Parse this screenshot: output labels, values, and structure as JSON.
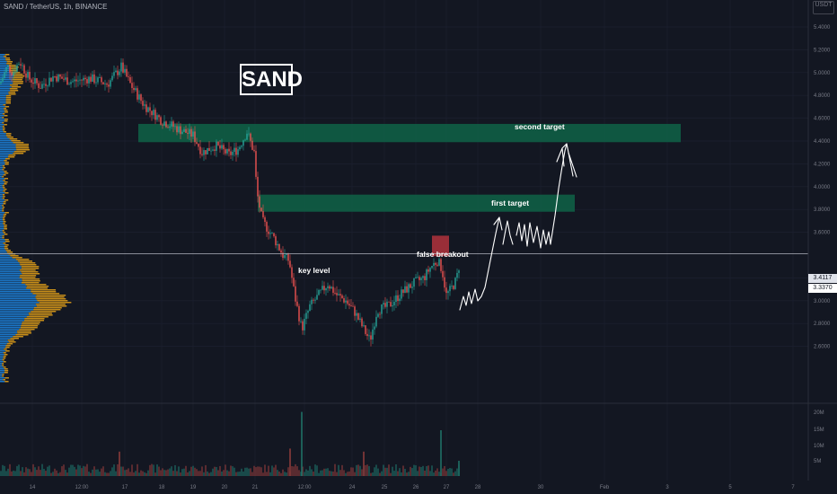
{
  "header": {
    "symbol_line": "SAND / TetherUS, 1h, BINANCE",
    "quote_currency": "USDT"
  },
  "title_box": "SAND",
  "annotations": {
    "key_level": "key level",
    "false_breakout": "false breakout",
    "first_target": "first target",
    "second_target": "second target"
  },
  "price_tags": {
    "key_level_price": "3.4117",
    "last_price": "3.3370"
  },
  "colors": {
    "background": "#131722",
    "up_candle": "#26a69a",
    "down_candle": "#ef5350",
    "zone_fill": "#0f5e45",
    "false_breakout_zone": "#b2333c",
    "volume_profile_blue": "#1e88e5",
    "volume_profile_yellow": "#e8a317",
    "projection_line": "#ffffff"
  },
  "chart_data": {
    "type": "candlestick",
    "title": "SAND / TetherUS, 1h, BINANCE",
    "y_axis": {
      "ticks": [
        "5.4000",
        "5.2000",
        "5.0000",
        "4.8000",
        "4.6000",
        "4.4000",
        "4.2000",
        "4.0000",
        "3.8000",
        "3.6000",
        "3.2000",
        "3.0000",
        "2.8000",
        "2.6000"
      ],
      "range": [
        2.45,
        5.55
      ],
      "scale": "linear"
    },
    "x_axis": {
      "ticks": [
        "14",
        "12:00",
        "17",
        "18",
        "19",
        "20",
        "21",
        "12:00",
        "24",
        "25",
        "26",
        "27",
        "28",
        "30",
        "Feb",
        "3",
        "5",
        "7"
      ]
    },
    "volume_axis": {
      "ticks": [
        "20M",
        "15M",
        "10M",
        "5M"
      ]
    },
    "price_path": [
      [
        0,
        4.9
      ],
      [
        8,
        5.05
      ],
      [
        14,
        5.0
      ],
      [
        22,
        5.1
      ],
      [
        32,
        4.95
      ],
      [
        45,
        4.88
      ],
      [
        60,
        4.97
      ],
      [
        80,
        4.92
      ],
      [
        100,
        4.95
      ],
      [
        120,
        4.9
      ],
      [
        135,
        5.05
      ],
      [
        145,
        4.9
      ],
      [
        160,
        4.72
      ],
      [
        180,
        4.58
      ],
      [
        200,
        4.5
      ],
      [
        215,
        4.45
      ],
      [
        225,
        4.3
      ],
      [
        240,
        4.36
      ],
      [
        255,
        4.28
      ],
      [
        265,
        4.33
      ],
      [
        275,
        4.48
      ],
      [
        283,
        4.3
      ],
      [
        286,
        3.95
      ],
      [
        292,
        3.7
      ],
      [
        305,
        3.55
      ],
      [
        315,
        3.4
      ],
      [
        322,
        3.35
      ],
      [
        328,
        3.05
      ],
      [
        336,
        2.75
      ],
      [
        345,
        2.95
      ],
      [
        355,
        3.05
      ],
      [
        365,
        3.15
      ],
      [
        375,
        3.05
      ],
      [
        385,
        3.0
      ],
      [
        395,
        2.9
      ],
      [
        405,
        2.75
      ],
      [
        412,
        2.65
      ],
      [
        420,
        2.92
      ],
      [
        432,
        2.95
      ],
      [
        445,
        3.05
      ],
      [
        460,
        3.15
      ],
      [
        472,
        3.2
      ],
      [
        480,
        3.3
      ],
      [
        487,
        3.35
      ],
      [
        492,
        3.28
      ],
      [
        497,
        3.05
      ],
      [
        502,
        3.1
      ],
      [
        508,
        3.18
      ],
      [
        512,
        3.337
      ]
    ],
    "horizontal_levels": [
      {
        "label": "key level",
        "price": 3.4117
      }
    ],
    "zones": [
      {
        "price_top": 4.55,
        "price_bottom": 4.39
      },
      {
        "price_top": 3.93,
        "price_bottom": 3.78
      },
      {
        "label": "false breakout",
        "price_top": 3.57,
        "price_bottom": 3.39
      }
    ],
    "volume_spikes": [
      {
        "x": 133,
        "value": 8
      },
      {
        "x": 323,
        "value": 9
      },
      {
        "x": 336,
        "value": 21
      },
      {
        "x": 405,
        "value": 8
      },
      {
        "x": 491,
        "value": 15
      },
      {
        "x": 511,
        "value": 5
      }
    ],
    "last_price": 3.337,
    "key_level_price": 3.4117
  }
}
